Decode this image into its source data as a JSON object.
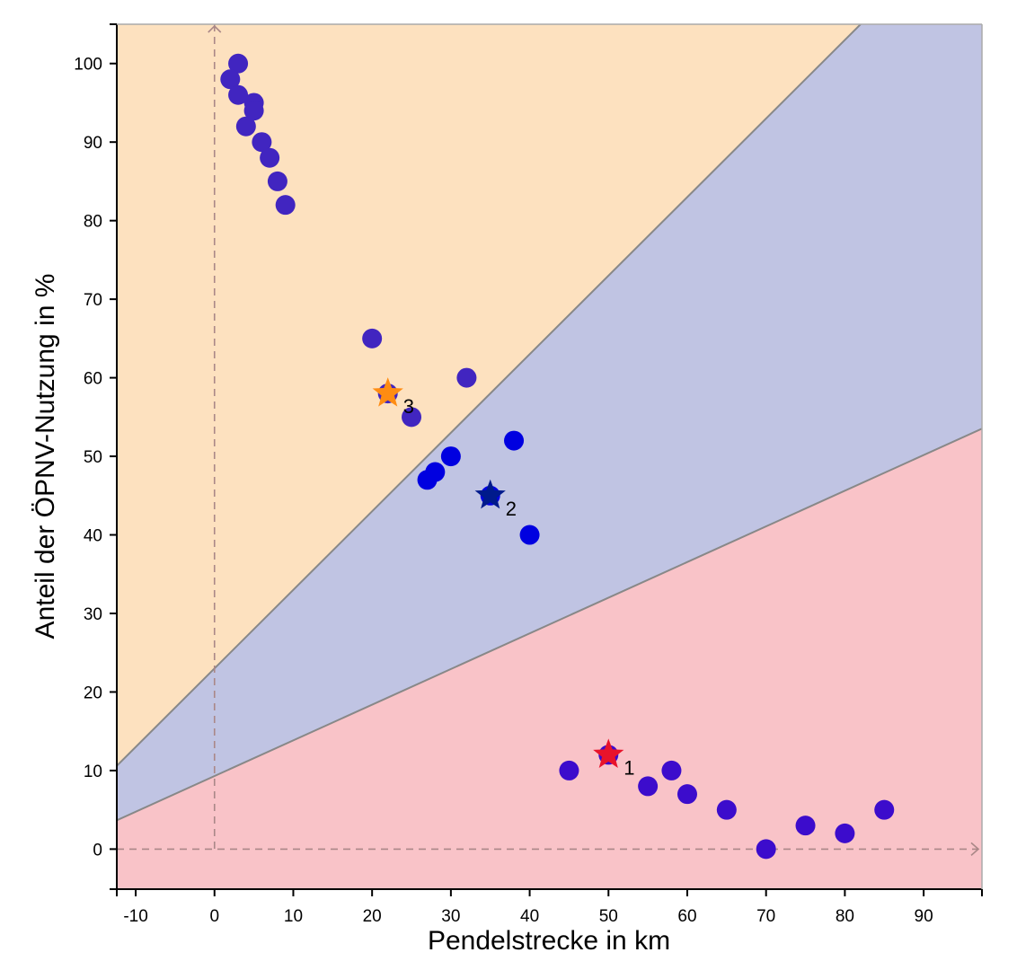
{
  "chart_data": {
    "type": "scatter",
    "title": "",
    "xlabel": "Pendelstrecke in km",
    "ylabel": "Anteil der ÖPNV-Nutzung in %",
    "xlim": [
      -12.4,
      97.4
    ],
    "ylim": [
      -5.1,
      105
    ],
    "xticks": [
      -10,
      0,
      10,
      20,
      30,
      40,
      50,
      60,
      70,
      80,
      90
    ],
    "yticks": [
      0,
      10,
      20,
      30,
      40,
      50,
      60,
      70,
      80,
      90,
      100
    ],
    "grid": false,
    "boundaries": [
      {
        "slope": 1.0,
        "intercept": 23
      },
      {
        "slope": 0.454,
        "intercept": 9.3
      }
    ],
    "regions": [
      {
        "position": "upper",
        "color": "#fde1bf"
      },
      {
        "position": "middle",
        "color": "#c0c4e3"
      },
      {
        "position": "lower",
        "color": "#f9c3c8"
      }
    ],
    "groups": [
      {
        "color": "#4125c0",
        "points": [
          [
            3,
            100
          ],
          [
            2,
            98
          ],
          [
            3,
            96
          ],
          [
            5,
            95
          ],
          [
            5,
            94
          ],
          [
            4,
            92
          ],
          [
            6,
            90
          ],
          [
            7,
            88
          ],
          [
            8,
            85
          ],
          [
            9,
            82
          ],
          [
            20,
            65
          ],
          [
            32,
            60
          ],
          [
            25,
            55
          ],
          [
            22,
            58
          ]
        ]
      },
      {
        "color": "#0000e0",
        "points": [
          [
            38,
            52
          ],
          [
            30,
            50
          ],
          [
            28,
            48
          ],
          [
            27,
            47
          ],
          [
            40,
            40
          ],
          [
            35,
            45
          ]
        ]
      },
      {
        "color": "#3c0ccc",
        "points": [
          [
            45,
            10
          ],
          [
            50,
            12
          ],
          [
            58,
            10
          ],
          [
            55,
            8
          ],
          [
            60,
            7
          ],
          [
            65,
            5
          ],
          [
            70,
            0
          ],
          [
            75,
            3
          ],
          [
            80,
            2
          ],
          [
            85,
            5
          ]
        ]
      }
    ],
    "centroids": [
      {
        "label": "1",
        "x": 50,
        "y": 12,
        "color": "#e8132b"
      },
      {
        "label": "2",
        "x": 35,
        "y": 45,
        "color": "#001a8c"
      },
      {
        "label": "3",
        "x": 22,
        "y": 58,
        "color": "#ff8c12"
      }
    ]
  }
}
